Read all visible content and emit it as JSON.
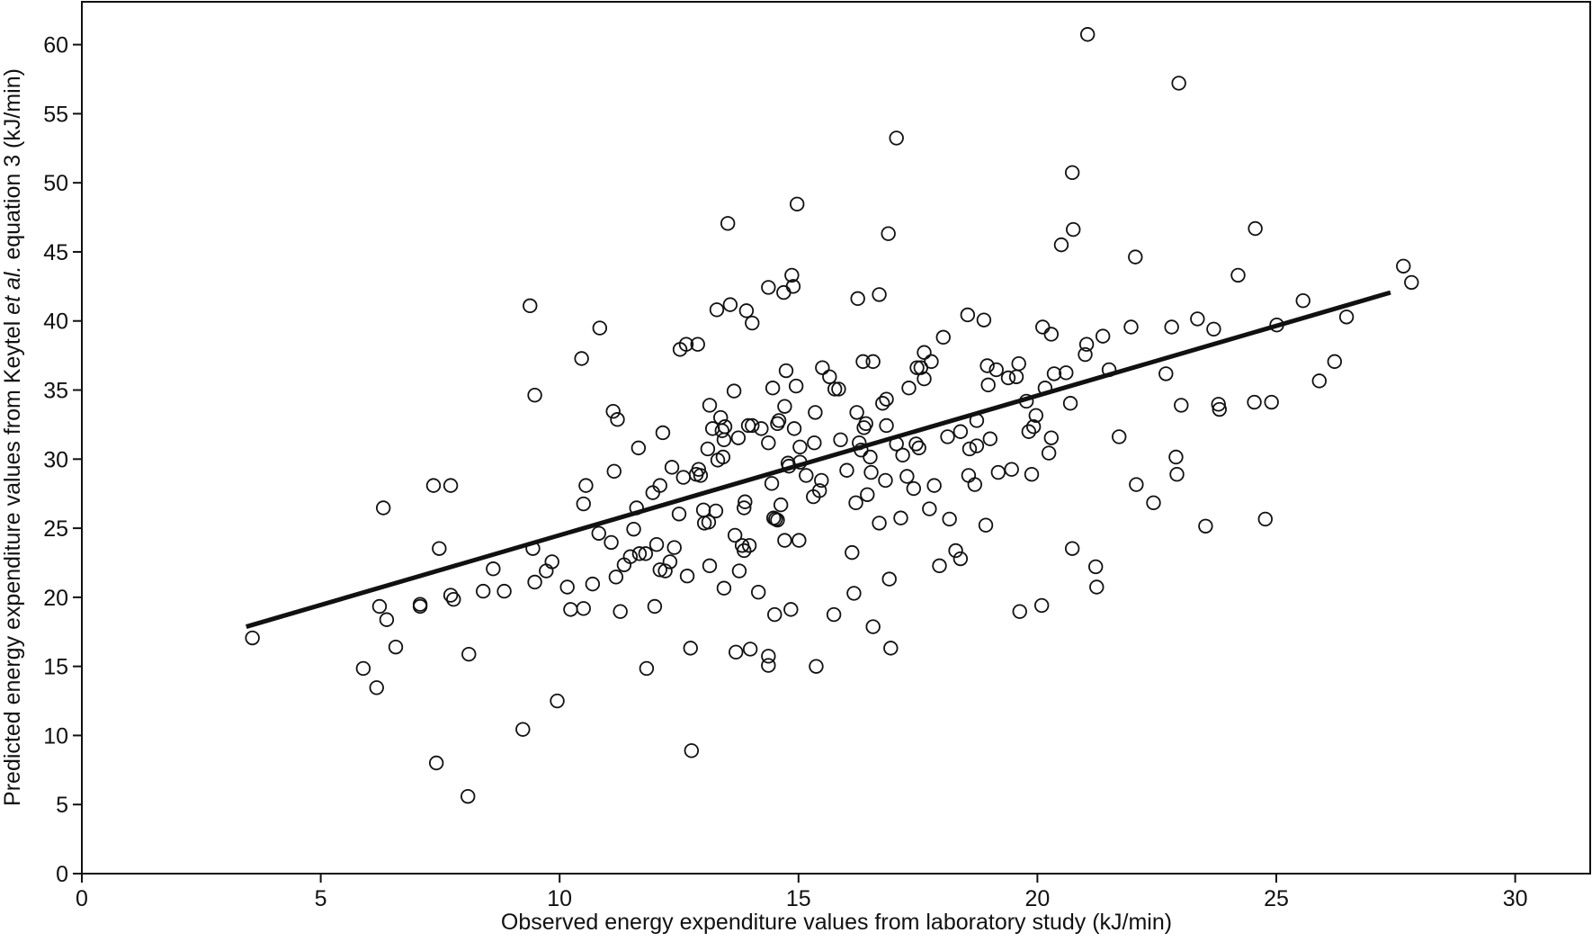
{
  "chart_data": {
    "type": "scatter",
    "xlabel": "Observed energy expenditure values from laboratory study (kJ/min)",
    "ylabel": [
      "Predicted energy expenditure values from Keytel ",
      "et al.",
      " equation 3 (kJ/min)"
    ],
    "xlim": [
      0,
      31.57
    ],
    "ylim": [
      0,
      63.1
    ],
    "xticks": [
      0,
      5,
      10,
      15,
      20,
      25,
      30
    ],
    "yticks": [
      0,
      5,
      10,
      15,
      20,
      25,
      30,
      35,
      40,
      45,
      50,
      55,
      60
    ],
    "color": "#111111",
    "x": [
      3.57,
      5.89,
      6.17,
      6.23,
      6.38,
      6.31,
      6.57,
      7.08,
      7.08,
      7.36,
      7.72,
      7.48,
      7.42,
      7.72,
      7.78,
      8.1,
      8.08,
      8.4,
      8.61,
      8.84,
      9.23,
      9.38,
      9.48,
      9.44,
      9.48,
      9.72,
      9.84,
      9.95,
      10.16,
      10.23,
      10.46,
      10.5,
      10.55,
      10.5,
      10.69,
      10.84,
      10.82,
      11.08,
      11.12,
      11.21,
      11.14,
      11.18,
      11.27,
      11.35,
      11.48,
      11.55,
      11.61,
      11.65,
      11.67,
      11.8,
      11.82,
      11.95,
      11.99,
      12.03,
      12.1,
      12.1,
      12.16,
      12.21,
      12.31,
      12.35,
      12.4,
      12.5,
      12.52,
      12.59,
      12.65,
      12.67,
      12.74,
      12.76,
      12.86,
      12.89,
      12.91,
      12.95,
      13.01,
      13.03,
      13.1,
      13.12,
      13.14,
      13.14,
      13.2,
      13.27,
      13.29,
      13.31,
      13.37,
      13.4,
      13.44,
      13.46,
      13.42,
      13.44,
      13.52,
      13.57,
      13.65,
      13.67,
      13.69,
      13.74,
      13.76,
      13.82,
      13.86,
      13.88,
      13.86,
      13.91,
      13.95,
      13.97,
      13.99,
      14.03,
      14.03,
      14.16,
      14.22,
      14.37,
      14.37,
      14.37,
      14.37,
      14.44,
      14.46,
      14.48,
      14.52,
      14.56,
      14.5,
      14.56,
      14.59,
      14.63,
      14.69,
      14.71,
      14.71,
      14.74,
      14.78,
      14.8,
      14.86,
      14.89,
      14.84,
      14.91,
      14.95,
      14.97,
      15.01,
      15.03,
      15.03,
      15.16,
      15.31,
      15.33,
      15.37,
      15.35,
      15.44,
      15.5,
      15.48,
      15.65,
      15.74,
      15.76,
      15.84,
      15.88,
      16.01,
      16.12,
      16.16,
      16.2,
      16.22,
      16.24,
      16.27,
      16.31,
      16.35,
      16.37,
      16.41,
      16.44,
      16.5,
      16.52,
      16.56,
      16.56,
      16.69,
      16.69,
      16.76,
      16.82,
      16.84,
      16.84,
      16.88,
      16.9,
      16.93,
      17.05,
      17.05,
      17.14,
      17.18,
      17.27,
      17.31,
      17.41,
      17.46,
      17.48,
      17.52,
      17.56,
      17.63,
      17.63,
      17.74,
      17.78,
      17.84,
      17.95,
      18.03,
      18.12,
      18.16,
      18.29,
      18.39,
      18.39,
      18.54,
      18.56,
      18.58,
      18.69,
      18.73,
      18.73,
      18.88,
      18.92,
      18.95,
      18.97,
      19.01,
      19.14,
      19.18,
      19.39,
      19.46,
      19.56,
      19.61,
      19.63,
      19.77,
      19.82,
      19.88,
      19.92,
      19.97,
      20.09,
      20.11,
      20.16,
      20.24,
      20.29,
      20.29,
      20.35,
      20.5,
      20.6,
      20.69,
      20.73,
      20.73,
      20.75,
      21.0,
      21.03,
      21.05,
      21.22,
      21.24,
      21.37,
      21.5,
      21.71,
      21.96,
      22.05,
      22.07,
      22.43,
      22.69,
      22.81,
      22.9,
      22.92,
      22.96,
      23.01,
      23.35,
      23.52,
      23.69,
      23.79,
      23.81,
      24.2,
      24.54,
      24.56,
      24.77,
      24.9,
      25.01,
      25.56,
      25.9,
      26.22,
      26.47,
      27.66,
      27.83
    ],
    "y": [
      17.06,
      14.85,
      13.46,
      19.34,
      18.38,
      26.47,
      16.4,
      19.34,
      19.49,
      28.09,
      28.09,
      23.53,
      8.01,
      20.15,
      19.85,
      15.88,
      5.59,
      20.44,
      22.06,
      20.44,
      10.44,
      41.1,
      34.63,
      23.53,
      21.1,
      21.91,
      22.57,
      12.5,
      20.74,
      19.12,
      37.28,
      26.76,
      28.09,
      19.19,
      20.96,
      39.49,
      24.63,
      23.97,
      33.46,
      32.87,
      29.12,
      21.47,
      18.97,
      22.35,
      22.94,
      24.93,
      26.47,
      30.81,
      23.16,
      23.16,
      14.85,
      27.57,
      19.34,
      23.82,
      28.09,
      21.99,
      31.91,
      21.91,
      22.57,
      29.41,
      23.6,
      26.03,
      37.94,
      28.68,
      38.31,
      21.54,
      16.32,
      8.9,
      28.9,
      38.31,
      29.26,
      28.82,
      26.32,
      25.37,
      30.74,
      25.44,
      33.9,
      22.28,
      32.21,
      26.25,
      40.81,
      29.93,
      33.01,
      32.06,
      31.4,
      32.35,
      30.15,
      20.66,
      47.06,
      41.18,
      34.93,
      24.49,
      16.03,
      31.54,
      21.91,
      23.75,
      23.38,
      26.91,
      26.47,
      40.74,
      32.43,
      23.75,
      16.25,
      39.85,
      32.43,
      20.37,
      32.21,
      42.43,
      31.18,
      15.74,
      15.07,
      28.24,
      35.15,
      25.74,
      25.66,
      25.59,
      18.75,
      32.57,
      32.79,
      26.69,
      42.06,
      24.12,
      33.82,
      36.4,
      29.71,
      29.49,
      43.31,
      42.5,
      19.12,
      32.21,
      35.29,
      48.46,
      24.12,
      30.88,
      29.78,
      28.82,
      27.28,
      31.18,
      15.0,
      33.38,
      27.72,
      36.62,
      28.46,
      35.96,
      18.75,
      35.07,
      35.07,
      31.4,
      29.19,
      23.24,
      20.29,
      26.84,
      33.38,
      41.62,
      31.18,
      30.66,
      37.06,
      32.28,
      32.57,
      27.43,
      30.15,
      29.04,
      37.06,
      17.87,
      41.91,
      25.37,
      34.04,
      28.46,
      32.43,
      34.34,
      46.32,
      21.32,
      16.32,
      53.24,
      31.1,
      25.74,
      30.29,
      28.75,
      35.15,
      27.87,
      31.1,
      36.62,
      30.81,
      36.62,
      37.72,
      35.81,
      26.4,
      37.06,
      28.09,
      22.28,
      38.82,
      31.62,
      25.66,
      23.38,
      31.99,
      22.79,
      40.44,
      28.82,
      30.74,
      28.16,
      32.79,
      30.96,
      40.07,
      25.22,
      36.76,
      35.37,
      31.47,
      36.47,
      29.04,
      35.88,
      29.26,
      35.96,
      36.91,
      18.97,
      34.19,
      31.99,
      28.9,
      32.35,
      33.16,
      19.41,
      39.56,
      35.15,
      30.44,
      39.04,
      31.54,
      36.18,
      45.51,
      36.25,
      34.04,
      50.74,
      23.53,
      46.62,
      37.57,
      38.31,
      60.74,
      22.21,
      20.74,
      38.9,
      36.47,
      31.62,
      39.56,
      44.63,
      28.16,
      26.84,
      36.18,
      39.56,
      30.15,
      28.9,
      57.21,
      33.9,
      40.15,
      25.15,
      39.41,
      33.97,
      33.6,
      43.31,
      34.12,
      46.69,
      25.66,
      34.12,
      39.71,
      41.47,
      35.66,
      37.06,
      40.29,
      43.97,
      42.79
    ],
    "fit": {
      "x": [
        3.44,
        27.39
      ],
      "y": [
        17.87,
        42.06
      ]
    }
  }
}
